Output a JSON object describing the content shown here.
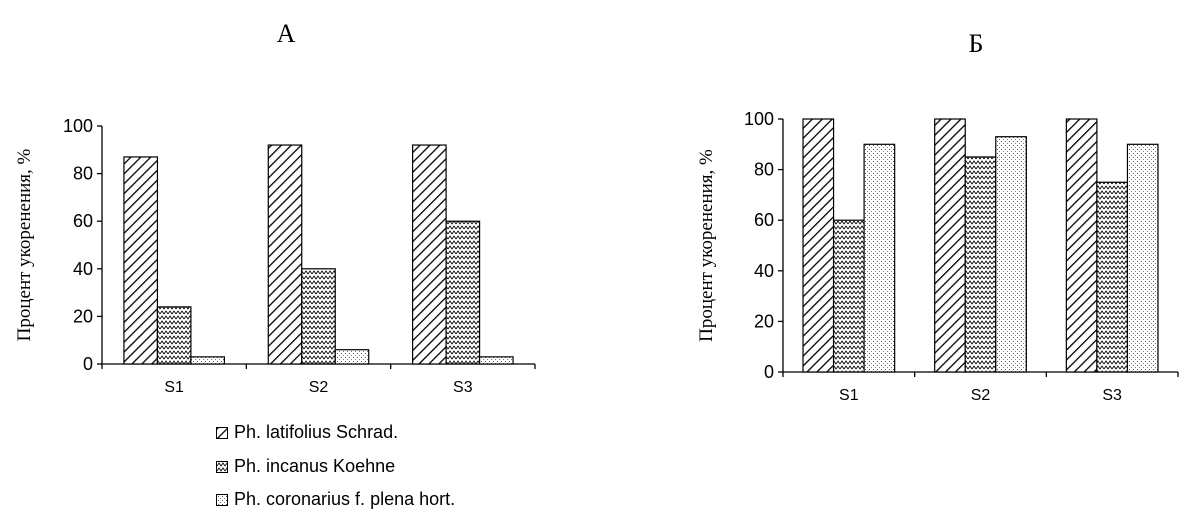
{
  "chart_data": [
    {
      "type": "bar",
      "title": "А",
      "xlabel": "",
      "ylabel": "Процент укоренения, %",
      "categories": [
        "S1",
        "S2",
        "S3"
      ],
      "ylim": [
        0,
        100
      ],
      "yticks": [
        "0",
        "20",
        "40",
        "60",
        "80",
        "100"
      ],
      "grid": false,
      "legend_position": "bottom-left",
      "series": [
        {
          "name": "Ph. latifolius Schrad.",
          "values": [
            87,
            92,
            92
          ],
          "pattern": "diagonal"
        },
        {
          "name": "Ph. incanus Koehne",
          "values": [
            24,
            40,
            60
          ],
          "pattern": "zigzag"
        },
        {
          "name": "Ph. coronarius f. plena hort.",
          "values": [
            3,
            6,
            3
          ],
          "pattern": "dots"
        }
      ]
    },
    {
      "type": "bar",
      "title": "Б",
      "xlabel": "",
      "ylabel": "Процент укоренения, %",
      "categories": [
        "S1",
        "S2",
        "S3"
      ],
      "ylim": [
        0,
        100
      ],
      "yticks": [
        "0",
        "20",
        "40",
        "60",
        "80",
        "100"
      ],
      "grid": false,
      "series": [
        {
          "values": [
            100,
            100,
            100
          ],
          "pattern": "diagonal"
        },
        {
          "values": [
            60,
            85,
            75
          ],
          "pattern": "zigzag"
        },
        {
          "values": [
            90,
            93,
            90
          ],
          "pattern": "dots"
        }
      ]
    }
  ],
  "colors": {
    "axis": "#000000",
    "bar_fill": "#ffffff",
    "hatch": "#000000"
  }
}
